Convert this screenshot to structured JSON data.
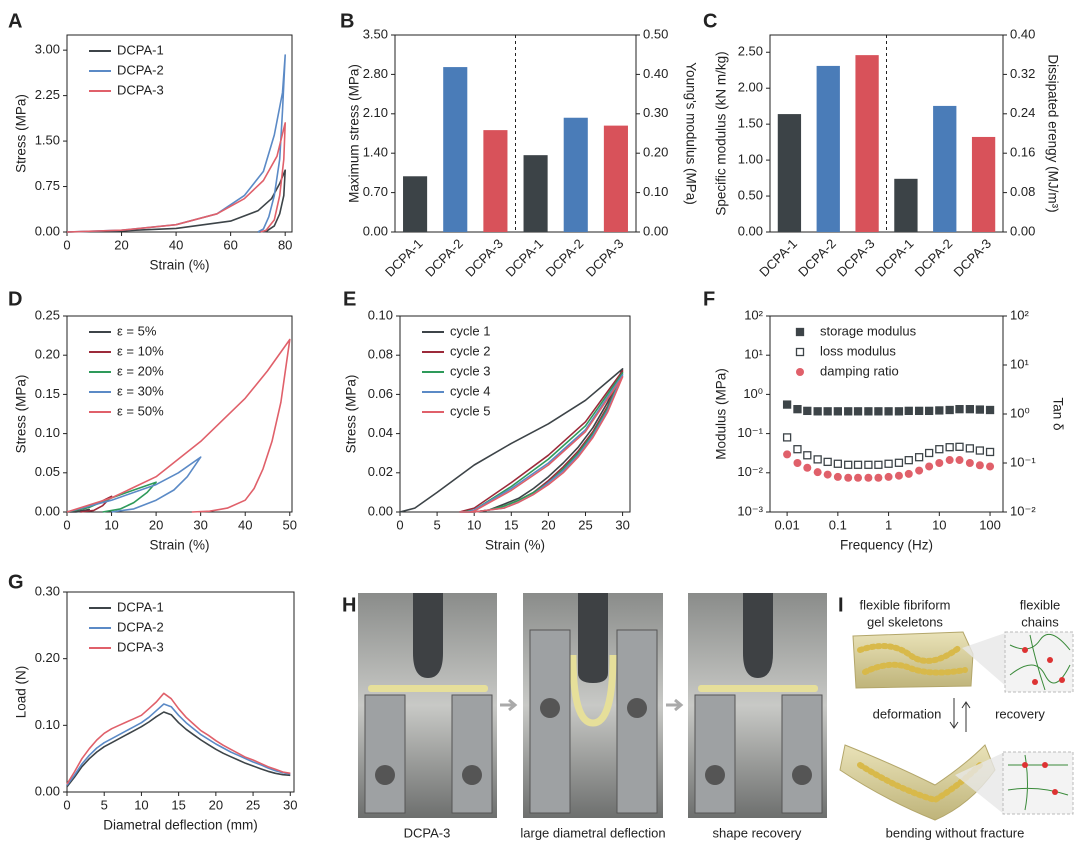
{
  "chart_data": [
    {
      "type": "line",
      "label": "A",
      "x_label": "Strain (%)",
      "y_label": "Stress (MPa)",
      "xlim": [
        0,
        82.5
      ],
      "xticks": [
        0,
        20,
        40,
        60,
        80
      ],
      "ylim": [
        0,
        3.25
      ],
      "yticks": [
        {
          "value": 0,
          "label": "0.00"
        },
        {
          "value": 0.75,
          "label": "0.75"
        },
        {
          "value": 1.5,
          "label": "1.50"
        },
        {
          "value": 2.25,
          "label": "2.25"
        },
        {
          "value": 3,
          "label": "3.00"
        }
      ],
      "series": [
        {
          "name": "DCPA-1",
          "color": "#3d4448",
          "x": [
            0,
            20,
            40,
            60,
            70,
            75,
            78,
            80,
            79.5,
            78,
            76,
            73,
            70
          ],
          "values": [
            0,
            0.02,
            0.06,
            0.18,
            0.35,
            0.55,
            0.8,
            1.02,
            0.6,
            0.3,
            0.1,
            0.01,
            0
          ]
        },
        {
          "name": "DCPA-2",
          "color": "#5b8ac6",
          "x": [
            0,
            20,
            40,
            55,
            65,
            72,
            76,
            79,
            80,
            79,
            78,
            76,
            74,
            72,
            70
          ],
          "values": [
            0,
            0.03,
            0.12,
            0.3,
            0.6,
            1.0,
            1.6,
            2.3,
            2.92,
            2.0,
            1.2,
            0.6,
            0.25,
            0.05,
            0
          ]
        },
        {
          "name": "DCPA-3",
          "color": "#e0606a",
          "x": [
            0,
            20,
            40,
            55,
            65,
            72,
            77,
            80,
            79.5,
            78,
            76,
            73,
            71
          ],
          "values": [
            0,
            0.03,
            0.12,
            0.3,
            0.55,
            0.85,
            1.25,
            1.8,
            1.2,
            0.6,
            0.2,
            0.03,
            0
          ]
        }
      ]
    },
    {
      "type": "bar",
      "label": "B",
      "y_label": "Maximum stress (MPa)",
      "y2_label": "Young's modulus (MPa)",
      "categories": [
        "DCPA-1",
        "DCPA-2",
        "DCPA-3",
        "DCPA-1",
        "DCPA-2",
        "DCPA-3"
      ],
      "colors": [
        "#3c4347",
        "#4a7cb8",
        "#d8525a",
        "#3c4347",
        "#4a7cb8",
        "#d8525a"
      ],
      "ylim": [
        0,
        3.5
      ],
      "yticks": [
        {
          "value": 0,
          "label": "0.00"
        },
        {
          "value": 0.7,
          "label": "0.70"
        },
        {
          "value": 1.4,
          "label": "1.40"
        },
        {
          "value": 2.1,
          "label": "2.10"
        },
        {
          "value": 2.8,
          "label": "2.80"
        },
        {
          "value": 3.5,
          "label": "3.50"
        }
      ],
      "y2lim": [
        0,
        0.5
      ],
      "y2ticks": [
        {
          "value": 0,
          "label": "0.00"
        },
        {
          "value": 0.1,
          "label": "0.10"
        },
        {
          "value": 0.2,
          "label": "0.20"
        },
        {
          "value": 0.3,
          "label": "0.30"
        },
        {
          "value": 0.4,
          "label": "0.40"
        },
        {
          "value": 0.5,
          "label": "0.50"
        }
      ],
      "series": [
        {
          "values": [
            0.99,
            2.93,
            1.81,
            null,
            null,
            null
          ]
        },
        {
          "values": [
            null,
            null,
            null,
            0.195,
            0.29,
            0.27
          ],
          "axis": "y2"
        }
      ]
    },
    {
      "type": "bar",
      "label": "C",
      "y_label": "Specific modulus (kN m/kg)",
      "y2_label": "Dissipated erengy (MJ/m³)",
      "categories": [
        "DCPA-1",
        "DCPA-2",
        "DCPA-3",
        "DCPA-1",
        "DCPA-2",
        "DCPA-3"
      ],
      "colors": [
        "#3c4347",
        "#4a7cb8",
        "#d8525a",
        "#3c4347",
        "#4a7cb8",
        "#d8525a"
      ],
      "ylim": [
        0,
        2.74
      ],
      "yticks": [
        {
          "value": 0,
          "label": "0.00"
        },
        {
          "value": 0.5,
          "label": "0.50"
        },
        {
          "value": 1,
          "label": "1.00"
        },
        {
          "value": 1.5,
          "label": "1.50"
        },
        {
          "value": 2,
          "label": "2.00"
        },
        {
          "value": 2.5,
          "label": "2.50"
        }
      ],
      "y2lim": [
        0,
        0.4
      ],
      "y2ticks": [
        {
          "value": 0,
          "label": "0.00"
        },
        {
          "value": 0.08,
          "label": "0.08"
        },
        {
          "value": 0.16,
          "label": "0.16"
        },
        {
          "value": 0.24,
          "label": "0.24"
        },
        {
          "value": 0.32,
          "label": "0.32"
        },
        {
          "value": 0.4,
          "label": "0.40"
        }
      ],
      "series": [
        {
          "values": [
            1.64,
            2.31,
            2.46,
            null,
            null,
            null
          ]
        },
        {
          "values": [
            null,
            null,
            null,
            0.108,
            0.256,
            0.193
          ],
          "axis": "y2"
        }
      ]
    },
    {
      "type": "line",
      "label": "D",
      "x_label": "Strain (%)",
      "y_label": "Stress (MPa)",
      "xlim": [
        0,
        50.5
      ],
      "xticks": [
        0,
        10,
        20,
        30,
        40,
        50
      ],
      "ylim": [
        0,
        0.25
      ],
      "yticks": [
        {
          "value": 0,
          "label": "0.00"
        },
        0.05,
        {
          "value": 0.1,
          "label": "0.10"
        },
        0.15,
        {
          "value": 0.2,
          "label": "0.20"
        },
        0.25
      ],
      "series": [
        {
          "name": "ε = 5%",
          "color": "#3d4448",
          "x": [
            0,
            2.5,
            5,
            3.5,
            2,
            0
          ],
          "values": [
            0,
            0.001,
            0.003,
            0.001,
            0,
            0
          ]
        },
        {
          "name": "ε = 10%",
          "color": "#9c2a3a",
          "x": [
            0,
            5,
            10,
            8,
            6,
            3
          ],
          "values": [
            0,
            0.006,
            0.02,
            0.008,
            0.002,
            0
          ]
        },
        {
          "name": "ε = 20%",
          "color": "#2e9a5a",
          "x": [
            0,
            5,
            10,
            15,
            20,
            18,
            15,
            12,
            8
          ],
          "values": [
            0,
            0.006,
            0.018,
            0.028,
            0.038,
            0.025,
            0.012,
            0.004,
            0
          ]
        },
        {
          "name": "ε = 30%",
          "color": "#5b8ac6",
          "x": [
            0,
            10,
            20,
            25,
            30,
            27,
            24,
            20,
            15,
            10
          ],
          "values": [
            0,
            0.015,
            0.035,
            0.05,
            0.07,
            0.045,
            0.028,
            0.015,
            0.004,
            0
          ]
        },
        {
          "name": "ε = 50%",
          "color": "#e0606a",
          "x": [
            0,
            10,
            20,
            30,
            40,
            45,
            50,
            48,
            46,
            44,
            42,
            40,
            36,
            32,
            28
          ],
          "values": [
            0,
            0.018,
            0.045,
            0.09,
            0.145,
            0.18,
            0.22,
            0.14,
            0.09,
            0.055,
            0.03,
            0.015,
            0.005,
            0.001,
            0
          ]
        }
      ]
    },
    {
      "type": "line",
      "label": "E",
      "x_label": "Strain (%)",
      "y_label": "Stress (MPa)",
      "xlim": [
        0,
        31
      ],
      "xticks": [
        0,
        5,
        10,
        15,
        20,
        25,
        30
      ],
      "ylim": [
        0,
        0.1
      ],
      "yticks": [
        {
          "value": 0,
          "label": "0.00"
        },
        0.02,
        0.04,
        0.06,
        0.08,
        {
          "value": 0.1,
          "label": "0.10"
        }
      ],
      "series": [
        {
          "name": "cycle 1",
          "color": "#3d4448",
          "x": [
            0,
            2,
            5,
            10,
            15,
            20,
            25,
            30,
            28,
            26,
            24,
            22,
            20,
            18,
            16,
            14,
            12,
            10
          ],
          "values": [
            0,
            0.002,
            0.01,
            0.024,
            0.035,
            0.045,
            0.057,
            0.073,
            0.056,
            0.043,
            0.033,
            0.025,
            0.018,
            0.012,
            0.007,
            0.004,
            0.001,
            0
          ]
        },
        {
          "name": "cycle 2",
          "color": "#9c2a3a",
          "x": [
            8,
            10,
            15,
            20,
            25,
            30,
            28,
            26,
            24,
            22,
            20,
            18,
            16,
            14,
            12,
            10,
            8
          ],
          "values": [
            0,
            0.002,
            0.015,
            0.029,
            0.046,
            0.072,
            0.054,
            0.041,
            0.031,
            0.023,
            0.016,
            0.01,
            0.006,
            0.003,
            0.001,
            0,
            0
          ]
        },
        {
          "name": "cycle 3",
          "color": "#2e9a5a",
          "x": [
            8.5,
            10,
            15,
            20,
            25,
            30,
            28,
            26,
            24,
            22,
            20,
            18,
            16,
            14,
            12,
            10,
            8
          ],
          "values": [
            0,
            0.001,
            0.013,
            0.027,
            0.044,
            0.071,
            0.053,
            0.04,
            0.03,
            0.022,
            0.015,
            0.01,
            0.006,
            0.003,
            0.001,
            0,
            0
          ]
        },
        {
          "name": "cycle 4",
          "color": "#5b8ac6",
          "x": [
            9,
            10,
            15,
            20,
            25,
            30,
            28,
            26,
            24,
            22,
            20,
            18,
            16,
            14,
            12,
            10,
            8
          ],
          "values": [
            0,
            0.001,
            0.012,
            0.025,
            0.042,
            0.07,
            0.052,
            0.039,
            0.029,
            0.021,
            0.015,
            0.009,
            0.005,
            0.002,
            0.001,
            0,
            0
          ]
        },
        {
          "name": "cycle 5",
          "color": "#e0606a",
          "x": [
            9.5,
            10,
            15,
            20,
            25,
            30,
            28,
            26,
            24,
            22,
            20,
            18,
            16,
            14,
            12,
            10,
            8
          ],
          "values": [
            0,
            0.0005,
            0.011,
            0.024,
            0.041,
            0.069,
            0.051,
            0.038,
            0.028,
            0.02,
            0.014,
            0.009,
            0.005,
            0.002,
            0.001,
            0,
            0
          ]
        }
      ]
    },
    {
      "type": "scatter",
      "label": "F",
      "x_label": "Frequency (Hz)",
      "y_label": "Modulus (MPa)",
      "y2_label": "Tan δ",
      "xlog": true,
      "ylog": true,
      "y2log": true,
      "xlim": [
        0.0046,
        180
      ],
      "xticks": [
        0.01,
        0.1,
        1,
        10,
        100
      ],
      "ylim": [
        0.001,
        100
      ],
      "yticks": [
        {
          "value": 0.001,
          "label": "10⁻³"
        },
        {
          "value": 0.01,
          "label": "10⁻²"
        },
        {
          "value": 0.1,
          "label": "10⁻¹"
        },
        {
          "value": 1,
          "label": "10⁰"
        },
        {
          "value": 10,
          "label": "10¹"
        },
        {
          "value": 100,
          "label": "10²"
        }
      ],
      "y2lim": [
        0.01,
        100
      ],
      "y2ticks": [
        {
          "value": 0.01,
          "label": "10⁻²"
        },
        {
          "value": 0.1,
          "label": "10⁻¹"
        },
        {
          "value": 1,
          "label": "10⁰"
        },
        {
          "value": 10,
          "label": "10¹"
        },
        {
          "value": 100,
          "label": "10²"
        }
      ],
      "x": [
        0.01,
        0.016,
        0.025,
        0.04,
        0.063,
        0.1,
        0.16,
        0.25,
        0.4,
        0.63,
        1,
        1.6,
        2.5,
        4,
        6.3,
        10,
        16,
        25,
        40,
        63,
        100
      ],
      "series": [
        {
          "name": "storage modulus",
          "color": "#3d4448",
          "marker": "square",
          "values": [
            0.55,
            0.42,
            0.38,
            0.37,
            0.37,
            0.37,
            0.37,
            0.37,
            0.37,
            0.37,
            0.37,
            0.37,
            0.38,
            0.38,
            0.38,
            0.39,
            0.4,
            0.42,
            0.42,
            0.41,
            0.4
          ]
        },
        {
          "name": "loss modulus",
          "color": "#3d4448",
          "marker": "square-open",
          "values": [
            0.08,
            0.04,
            0.028,
            0.022,
            0.019,
            0.017,
            0.016,
            0.016,
            0.016,
            0.016,
            0.017,
            0.018,
            0.021,
            0.025,
            0.032,
            0.04,
            0.045,
            0.046,
            0.042,
            0.037,
            0.034
          ]
        },
        {
          "name": "damping ratio",
          "color": "#e0606a",
          "marker": "circle",
          "axis": "y2",
          "values": [
            0.15,
            0.1,
            0.08,
            0.065,
            0.058,
            0.052,
            0.05,
            0.05,
            0.05,
            0.05,
            0.052,
            0.055,
            0.06,
            0.07,
            0.085,
            0.1,
            0.115,
            0.115,
            0.1,
            0.09,
            0.085
          ]
        }
      ]
    },
    {
      "type": "line",
      "label": "G",
      "x_label": "Diametral deflection (mm)",
      "y_label": "Load (N)",
      "xlim": [
        0,
        30.5
      ],
      "xticks": [
        0,
        5,
        10,
        15,
        20,
        25,
        30
      ],
      "ylim": [
        0,
        0.3
      ],
      "yticks": [
        {
          "value": 0,
          "label": "0.00"
        },
        {
          "value": 0.1,
          "label": "0.10"
        },
        {
          "value": 0.2,
          "label": "0.20"
        },
        {
          "value": 0.3,
          "label": "0.30"
        }
      ],
      "x": [
        0,
        1,
        2,
        3,
        4,
        5,
        6,
        7,
        8,
        9,
        10,
        11,
        12,
        13,
        14,
        15,
        16,
        17,
        18,
        19,
        20,
        21,
        22,
        23,
        24,
        25,
        26,
        27,
        28,
        29,
        30
      ],
      "series": [
        {
          "name": "DCPA-1",
          "color": "#3d4448",
          "values": [
            0.008,
            0.022,
            0.038,
            0.05,
            0.06,
            0.068,
            0.074,
            0.08,
            0.086,
            0.092,
            0.098,
            0.105,
            0.113,
            0.12,
            0.116,
            0.104,
            0.094,
            0.086,
            0.078,
            0.071,
            0.064,
            0.058,
            0.053,
            0.048,
            0.043,
            0.039,
            0.035,
            0.031,
            0.028,
            0.026,
            0.025
          ]
        },
        {
          "name": "DCPA-2",
          "color": "#5b8ac6",
          "values": [
            0.01,
            0.025,
            0.042,
            0.055,
            0.066,
            0.074,
            0.08,
            0.086,
            0.092,
            0.098,
            0.104,
            0.112,
            0.122,
            0.132,
            0.128,
            0.115,
            0.104,
            0.095,
            0.086,
            0.079,
            0.072,
            0.066,
            0.06,
            0.055,
            0.05,
            0.045,
            0.041,
            0.036,
            0.032,
            0.029,
            0.027
          ]
        },
        {
          "name": "DCPA-3",
          "color": "#e0606a",
          "values": [
            0.012,
            0.03,
            0.05,
            0.065,
            0.078,
            0.088,
            0.095,
            0.1,
            0.105,
            0.11,
            0.115,
            0.125,
            0.135,
            0.148,
            0.14,
            0.125,
            0.112,
            0.102,
            0.092,
            0.085,
            0.077,
            0.07,
            0.064,
            0.058,
            0.052,
            0.048,
            0.043,
            0.038,
            0.034,
            0.03,
            0.028
          ]
        }
      ]
    }
  ],
  "photos": {
    "label": "H",
    "captions": [
      "DCPA-3",
      "large diametral deflection",
      "shape recovery"
    ]
  },
  "diagram": {
    "label": "I",
    "top_left": [
      "flexible fibriform",
      "gel skeletons"
    ],
    "top_right": [
      "flexible",
      "chains"
    ],
    "left_arrow": "deformation",
    "right_arrow": "recovery",
    "caption": "bending without fracture"
  }
}
